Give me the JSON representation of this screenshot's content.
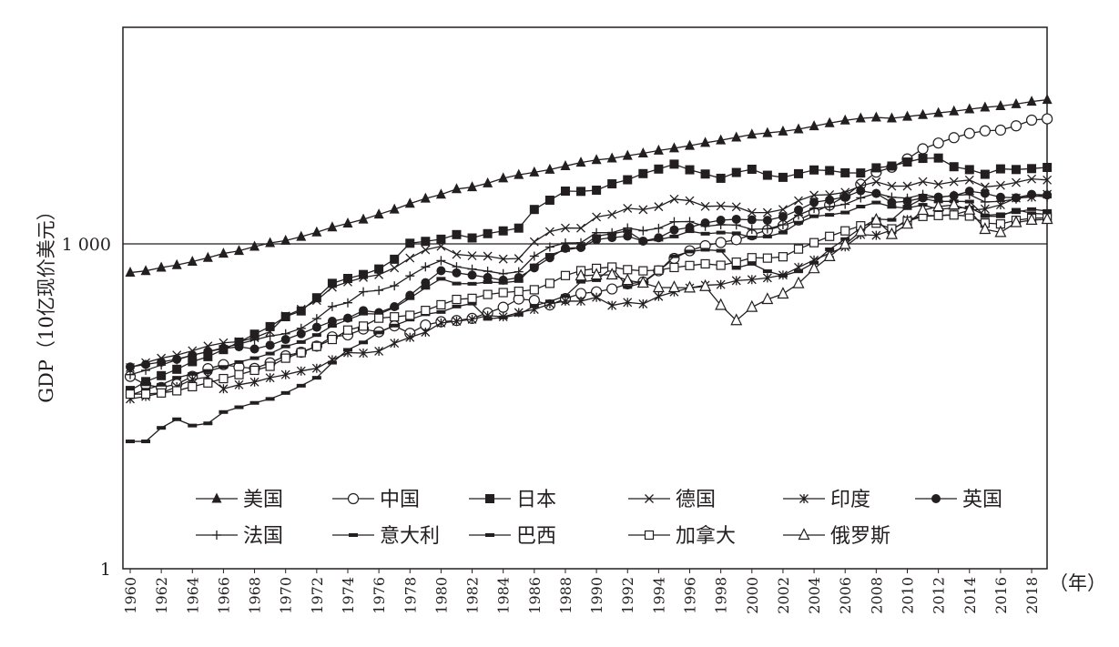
{
  "chart_data": {
    "type": "line",
    "title": "",
    "xlabel": "（年）",
    "ylabel": "GDP（10亿现价美元）",
    "yscale": "log",
    "ylim": [
      1,
      100000
    ],
    "xlim": [
      1959.5,
      2019.5
    ],
    "yticks": [
      {
        "value": 1,
        "label": "1"
      },
      {
        "value": 1000,
        "label": "1 000"
      }
    ],
    "xticks": [
      "1960",
      "1962",
      "1964",
      "1966",
      "1968",
      "1970",
      "1972",
      "1974",
      "1976",
      "1978",
      "1980",
      "1982",
      "1984",
      "1986",
      "1988",
      "1990",
      "1992",
      "1994",
      "1996",
      "1998",
      "2000",
      "2002",
      "2004",
      "2006",
      "2008",
      "2010",
      "2012",
      "2014",
      "2016",
      "2018"
    ],
    "reference_line": 1000,
    "legend_placement": "bottom-center",
    "start_year": 1960,
    "series": [
      {
        "name": "美国",
        "marker": "triangle-filled",
        "start": 1960,
        "values": [
          543,
          563,
          605,
          638,
          686,
          744,
          815,
          862,
          943,
          1019,
          1073,
          1165,
          1280,
          1425,
          1545,
          1684,
          1873,
          2082,
          2352,
          2627,
          2857,
          3207,
          3343,
          3634,
          4037,
          4339,
          4580,
          4855,
          5236,
          5642,
          5963,
          6158,
          6520,
          6859,
          7287,
          7640,
          8073,
          8577,
          9063,
          9631,
          10252,
          10582,
          10936,
          11458,
          12214,
          13037,
          13815,
          14452,
          14713,
          14449,
          14992,
          15543,
          16197,
          16785,
          17527,
          18238,
          18745,
          19543,
          20612,
          21433
        ]
      },
      {
        "name": "中国",
        "marker": "circle-open",
        "start": 1960,
        "values": [
          59.7,
          50.1,
          47.2,
          50.7,
          59.7,
          70.4,
          76.7,
          72.9,
          70.8,
          79.7,
          92.6,
          99.8,
          113.7,
          138.5,
          144.2,
          163.4,
          153.9,
          174.9,
          149.5,
          178.3,
          191.1,
          195.9,
          205.1,
          230.7,
          259.9,
          309.5,
          300.8,
          272.9,
          312.4,
          347.8,
          360.9,
          383.4,
          426.9,
          444.7,
          564.3,
          734.5,
          863.7,
          961.6,
          1029,
          1094,
          1211,
          1339,
          1471,
          1660,
          1955,
          2286,
          2752,
          3550,
          4594,
          5102,
          6087,
          7552,
          8532,
          9570,
          10476,
          11062,
          11233,
          12310,
          13895,
          14280
        ]
      },
      {
        "name": "日本",
        "marker": "square-filled",
        "start": 1960,
        "values": [
          44.3,
          53.5,
          60.7,
          69.5,
          81.7,
          91,
          105.6,
          123.8,
          146.6,
          172.2,
          212.6,
          240.2,
          318,
          432.1,
          479.6,
          521.5,
          586.2,
          721.4,
          1013.6,
          1055,
          1105,
          1218,
          1134,
          1243,
          1318,
          1398,
          2078,
          2532,
          3071,
          3054,
          3133,
          3584,
          3909,
          4454,
          4907,
          5449,
          4834,
          4415,
          4033,
          4563,
          4888,
          4304,
          4115,
          4445,
          4815,
          4755,
          4530,
          4515,
          5038,
          5231,
          5700,
          6157,
          6203,
          5156,
          4850,
          4389,
          4927,
          4860,
          4955,
          5082
        ]
      },
      {
        "name": "德国",
        "marker": "x",
        "start": 1960,
        "values": [
          72,
          80,
          88,
          94,
          103,
          114,
          122,
          125,
          136,
          155,
          216,
          249,
          300,
          398,
          445,
          490,
          519,
          600,
          740,
          881,
          950,
          800,
          777,
          770,
          725,
          732,
          1046,
          1296,
          1401,
          1398,
          1772,
          1869,
          2131,
          2071,
          2206,
          2591,
          2504,
          2219,
          2240,
          2197,
          1948,
          1945,
          2079,
          2505,
          2815,
          2846,
          2993,
          3425,
          3745,
          3411,
          3417,
          3758,
          3544,
          3753,
          3890,
          3357,
          3469,
          3690,
          3977,
          3889
        ]
      },
      {
        "name": "印度",
        "marker": "asterisk",
        "start": 1960,
        "values": [
          37,
          39,
          42,
          48,
          56,
          59,
          45.9,
          50,
          53,
          58,
          62,
          67,
          71,
          85,
          99,
          98,
          102,
          121,
          137,
          153,
          186,
          193,
          201,
          218,
          212,
          232,
          248,
          279,
          296,
          296,
          321,
          270,
          288,
          279,
          327,
          360,
          392,
          415,
          421,
          458,
          468,
          485,
          515,
          607,
          709,
          820,
          940,
          1217,
          1199,
          1342,
          1676,
          1823,
          1828,
          1857,
          2039,
          2104,
          2295,
          2651,
          2701,
          2871
        ]
      },
      {
        "name": "英国",
        "marker": "circle-filled",
        "start": 1960,
        "values": [
          73,
          77,
          81,
          86,
          94,
          101,
          108,
          112,
          107,
          116,
          131,
          148,
          170,
          193,
          206,
          242,
          232,
          263,
          335,
          438,
          565,
          540,
          515,
          490,
          462,
          489,
          601,
          745,
          910,
          926,
          1093,
          1142,
          1179,
          1061,
          1140,
          1344,
          1420,
          1560,
          1653,
          1688,
          1665,
          1649,
          1785,
          2054,
          2422,
          2544,
          2713,
          3093,
          2923,
          2410,
          2475,
          2659,
          2704,
          2786,
          3064,
          2928,
          2694,
          2666,
          2861,
          2829
        ]
      },
      {
        "name": "法国",
        "marker": "plus",
        "start": 1960,
        "values": [
          62,
          68,
          76,
          85,
          94,
          101,
          110,
          119,
          130,
          141,
          148,
          166,
          204,
          264,
          286,
          361,
          372,
          410,
          506,
          613,
          701,
          615,
          585,
          559,
          530,
          553,
          771,
          934,
          1019,
          1025,
          1269,
          1269,
          1402,
          1322,
          1393,
          1601,
          1606,
          1452,
          1503,
          1493,
          1362,
          1377,
          1501,
          1844,
          2120,
          2197,
          2320,
          2660,
          2930,
          2700,
          2643,
          2862,
          2683,
          2811,
          2852,
          2438,
          2471,
          2595,
          2788,
          2716
        ]
      },
      {
        "name": "意大利",
        "marker": "dash",
        "start": 1960,
        "values": [
          40,
          45,
          50,
          58,
          63,
          67,
          73,
          81,
          88,
          97,
          113,
          124,
          144,
          175,
          199,
          227,
          225,
          257,
          315,
          393,
          476,
          430,
          428,
          444,
          438,
          454,
          633,
          792,
          877,
          925,
          1178,
          1242,
          1315,
          1061,
          1095,
          1170,
          1309,
          1241,
          1271,
          1252,
          1147,
          1169,
          1271,
          1569,
          1798,
          1853,
          1947,
          2211,
          2408,
          2199,
          2137,
          2294,
          2087,
          2141,
          2162,
          1836,
          1877,
          1962,
          2092,
          2011
        ]
      },
      {
        "name": "巴西",
        "marker": "dash",
        "start": 1960,
        "values": [
          15,
          15,
          20,
          24,
          21,
          22,
          28,
          31,
          34,
          37,
          42,
          49,
          58,
          80,
          105,
          123,
          152,
          176,
          200,
          224,
          235,
          264,
          281,
          203,
          209,
          222,
          268,
          294,
          330,
          447,
          462,
          602,
          400,
          437,
          558,
          769,
          850,
          883,
          864,
          599,
          655,
          559,
          509,
          558,
          669,
          891,
          1107,
          1397,
          1696,
          1667,
          2209,
          2616,
          2465,
          2473,
          2456,
          1802,
          1796,
          2064,
          1917,
          1878
        ]
      },
      {
        "name": "加拿大",
        "marker": "square-open",
        "start": 1960,
        "values": [
          41,
          41,
          42,
          44,
          48,
          52,
          57,
          62,
          68,
          74,
          88,
          99,
          113,
          131,
          160,
          174,
          206,
          212,
          219,
          243,
          274,
          307,
          314,
          341,
          355,
          365,
          377,
          432,
          510,
          566,
          594,
          611,
          578,
          564,
          573,
          605,
          631,
          654,
          634,
          678,
          745,
          739,
          760,
          896,
          1026,
          1173,
          1319,
          1468,
          1553,
          1376,
          1617,
          1793,
          1828,
          1847,
          1806,
          1556,
          1528,
          1650,
          1725,
          1742
        ]
      },
      {
        "name": "俄罗斯",
        "marker": "triangle-open",
        "start": 1989,
        "values": [
          506,
          517,
          518,
          460,
          435,
          395,
          395,
          392,
          405,
          271,
          196,
          260,
          307,
          345,
          430,
          591,
          764,
          990,
          1300,
          1661,
          1223,
          1525,
          2046,
          2208,
          2292,
          2059,
          1363,
          1277,
          1575,
          1657,
          1687
        ]
      }
    ]
  }
}
